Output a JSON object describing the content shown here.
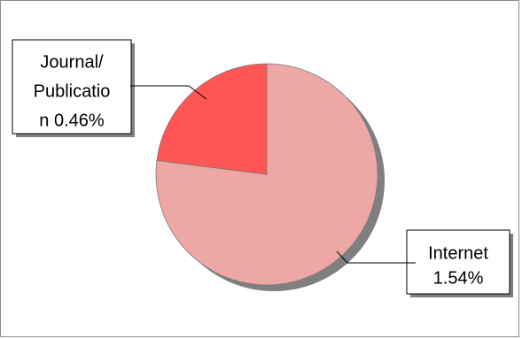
{
  "chart_data": {
    "type": "pie",
    "title": "",
    "slices": [
      {
        "label_lines": [
          "Internet",
          "1.54%"
        ],
        "value": 1.54,
        "color": "#eda8a5"
      },
      {
        "label_lines": [
          "Journal/",
          "Publicatio",
          "n 0.46%"
        ],
        "value": 0.46,
        "color": "#ff5555"
      }
    ],
    "shadow_color": "#7f7f7f",
    "start": "12 o'clock, clockwise",
    "legend": "none"
  }
}
